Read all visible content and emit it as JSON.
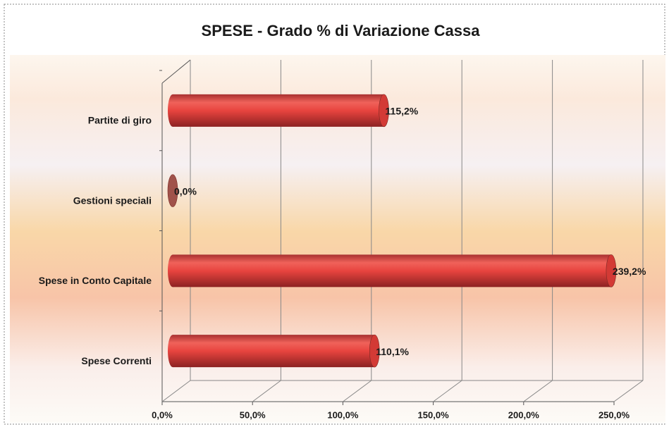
{
  "chart_data": {
    "type": "bar",
    "orientation": "horizontal",
    "title": "SPESE - Grado % di Variazione Cassa",
    "categories": [
      "Partite di giro",
      "Gestioni speciali",
      "Spese in Conto Capitale",
      "Spese Correnti"
    ],
    "values": [
      115.2,
      0.0,
      239.2,
      110.1
    ],
    "value_labels": [
      "115,2%",
      "0,0%",
      "239,2%",
      "110,1%"
    ],
    "color": "#e8443f",
    "xlim": [
      0,
      250
    ],
    "xticks": [
      {
        "value": 0,
        "label": "0,0%"
      },
      {
        "value": 50,
        "label": "50,0%"
      },
      {
        "value": 100,
        "label": "100,0%"
      },
      {
        "value": 150,
        "label": "150,0%"
      },
      {
        "value": 200,
        "label": "200,0%"
      },
      {
        "value": 250,
        "label": "250,0%"
      }
    ],
    "grid": true
  }
}
